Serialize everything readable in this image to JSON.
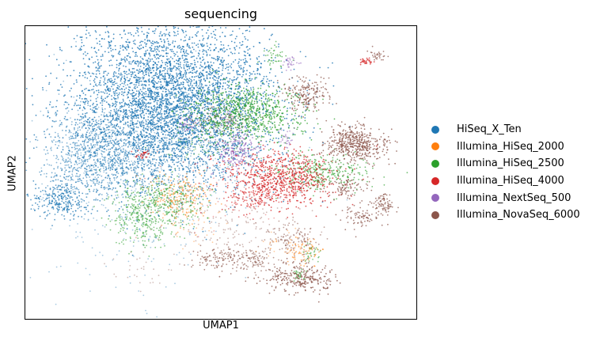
{
  "chart_data": {
    "type": "scatter",
    "title": "sequencing",
    "xlabel": "UMAP1",
    "ylabel": "UMAP2",
    "ticks": false,
    "grid": false,
    "legend_position": "right",
    "legend_title": "",
    "xlim": [
      0,
      100
    ],
    "ylim": [
      0,
      100
    ],
    "series": [
      {
        "name": "HiSeq_X_Ten",
        "color": "#1f77b4",
        "clusters": [
          [
            37,
            74,
            26,
            28,
            0.9
          ],
          [
            23,
            54,
            16,
            12,
            0.45
          ],
          [
            14,
            60,
            8,
            14,
            0.35
          ],
          [
            10,
            41,
            8,
            7,
            0.75
          ],
          [
            38,
            60,
            5,
            8,
            0.5
          ],
          [
            22,
            64,
            7,
            6,
            0.3
          ],
          [
            29,
            48,
            26,
            38,
            0.06
          ],
          [
            46,
            48,
            26,
            12,
            0.04
          ]
        ]
      },
      {
        "name": "Illumina_HiSeq_2000",
        "color": "#ff7f0e",
        "clusters": [
          [
            39,
            42,
            8,
            8,
            0.45
          ],
          [
            71,
            23,
            4,
            5,
            0.5
          ],
          [
            44,
            35,
            10,
            10,
            0.06
          ],
          [
            66,
            25,
            6,
            6,
            0.08
          ]
        ]
      },
      {
        "name": "Illumina_HiSeq_2500",
        "color": "#2ca02c",
        "clusters": [
          [
            56,
            70,
            14,
            10,
            0.8
          ],
          [
            34,
            40,
            12,
            8,
            0.5
          ],
          [
            30,
            33,
            8,
            8,
            0.45
          ],
          [
            76,
            50,
            12,
            6,
            0.6
          ],
          [
            64,
            89,
            3,
            4,
            0.5
          ],
          [
            73,
            22,
            3,
            3,
            0.4
          ],
          [
            70,
            15,
            2,
            2,
            0.5
          ],
          [
            48,
            58,
            10,
            6,
            0.2
          ]
        ]
      },
      {
        "name": "Illumina_HiSeq_4000",
        "color": "#d62728",
        "clusters": [
          [
            65,
            48,
            14,
            9,
            0.85
          ],
          [
            59,
            41,
            7,
            4,
            0.5
          ],
          [
            30,
            56,
            2,
            1.5,
            0.8
          ],
          [
            87,
            88,
            1.5,
            1.5,
            0.8
          ],
          [
            47,
            44,
            20,
            14,
            0.04
          ]
        ]
      },
      {
        "name": "Illumina_NextSeq_500",
        "color": "#9467bd",
        "clusters": [
          [
            54,
            57,
            6,
            6,
            0.75
          ],
          [
            42,
            67,
            3,
            3,
            0.6
          ],
          [
            68,
            88,
            2,
            3,
            0.5
          ],
          [
            67,
            62,
            2,
            4,
            0.4
          ],
          [
            52,
            68,
            2,
            3,
            0.5
          ]
        ]
      },
      {
        "name": "Illumina_NovaSeq_6000",
        "color": "#8c564b",
        "clusters": [
          [
            72,
            77,
            6,
            6,
            0.75
          ],
          [
            85,
            59,
            9,
            6,
            0.85
          ],
          [
            83,
            61,
            5,
            6,
            0.75
          ],
          [
            82,
            45,
            5,
            4,
            0.7
          ],
          [
            92,
            39,
            3,
            5,
            0.75
          ],
          [
            86,
            35,
            4,
            4,
            0.7
          ],
          [
            70,
            14,
            9,
            5,
            0.85
          ],
          [
            50,
            21,
            8,
            4,
            0.6
          ],
          [
            59,
            20,
            5,
            4,
            0.5
          ],
          [
            69,
            27,
            7,
            6,
            0.4
          ],
          [
            55,
            31,
            16,
            10,
            0.12
          ],
          [
            90,
            90,
            2,
            2,
            0.7
          ],
          [
            49,
            68,
            8,
            5,
            0.35
          ],
          [
            30,
            16,
            10,
            6,
            0.06
          ]
        ]
      }
    ]
  }
}
